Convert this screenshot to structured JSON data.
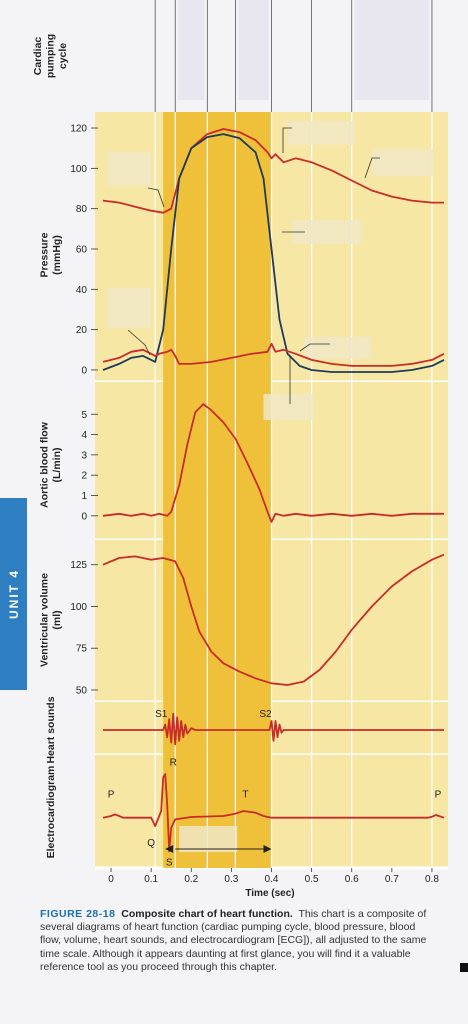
{
  "unit_tab": "UNIT 4",
  "caption": {
    "figure": "FIGURE 28-18",
    "title": "Composite chart of heart function.",
    "body": "This chart is a composite of several diagrams of heart function (cardiac pumping cycle, blood pressure, blood flow, volume, heart sounds, and electrocardiogram [ECG]), all adjusted to the same time scale. Although it appears daunting at first glance, you will find it a valuable reference tool as you proceed through this chapter."
  },
  "colors": {
    "panel_bg": "#f7e7a4",
    "systole_band": "#efc13a",
    "aortic_red": "#c92b2b",
    "ventricle_navy": "#1f3a5a",
    "unit_tab": "#2e7fc2"
  },
  "chart_data": {
    "type": "line",
    "xlabel": "Time (sec)",
    "x_ticks": [
      "0",
      "0.1",
      "0.2",
      "0.3",
      "0.4",
      "0.5",
      "0.6",
      "0.7",
      "0.8"
    ],
    "xlim": [
      -0.04,
      0.84
    ],
    "systole_band": [
      0.13,
      0.4
    ],
    "panels": [
      {
        "id": "cycle",
        "ylabel": "Cardiac pumping cycle",
        "phase_lines": [
          0.11,
          0.16,
          0.24,
          0.31,
          0.4,
          0.5,
          0.6,
          0.8
        ]
      },
      {
        "id": "pressure",
        "ylabel": "Pressure (mmHg)",
        "ylim": [
          -2,
          122
        ],
        "y_ticks": [
          0,
          20,
          40,
          60,
          80,
          100,
          120
        ],
        "series": [
          {
            "role": "aortic",
            "color": "#c92b2b",
            "points": [
              [
                -0.02,
                84
              ],
              [
                0.02,
                83
              ],
              [
                0.06,
                81
              ],
              [
                0.1,
                79
              ],
              [
                0.13,
                78
              ],
              [
                0.15,
                80
              ],
              [
                0.17,
                95
              ],
              [
                0.2,
                110
              ],
              [
                0.24,
                117
              ],
              [
                0.28,
                119.5
              ],
              [
                0.32,
                118
              ],
              [
                0.36,
                114
              ],
              [
                0.39,
                108
              ],
              [
                0.4,
                105
              ],
              [
                0.41,
                107
              ],
              [
                0.43,
                103
              ],
              [
                0.46,
                105
              ],
              [
                0.5,
                103
              ],
              [
                0.55,
                99
              ],
              [
                0.6,
                94
              ],
              [
                0.65,
                89
              ],
              [
                0.7,
                86
              ],
              [
                0.75,
                84
              ],
              [
                0.8,
                83
              ],
              [
                0.83,
                83
              ]
            ]
          },
          {
            "role": "ventricular",
            "color": "#1f3a5a",
            "points": [
              [
                -0.02,
                0
              ],
              [
                0.02,
                3
              ],
              [
                0.05,
                6
              ],
              [
                0.08,
                7
              ],
              [
                0.1,
                5
              ],
              [
                0.11,
                4
              ],
              [
                0.13,
                20
              ],
              [
                0.15,
                60
              ],
              [
                0.17,
                95
              ],
              [
                0.2,
                110
              ],
              [
                0.24,
                115.5
              ],
              [
                0.28,
                117
              ],
              [
                0.32,
                115
              ],
              [
                0.36,
                108
              ],
              [
                0.38,
                95
              ],
              [
                0.4,
                60
              ],
              [
                0.42,
                25
              ],
              [
                0.44,
                8
              ],
              [
                0.47,
                2
              ],
              [
                0.5,
                0
              ],
              [
                0.55,
                -1
              ],
              [
                0.6,
                -1
              ],
              [
                0.65,
                -1
              ],
              [
                0.7,
                -1
              ],
              [
                0.75,
                0
              ],
              [
                0.8,
                2
              ],
              [
                0.83,
                5
              ]
            ]
          },
          {
            "role": "atrial",
            "color": "#c92b2b",
            "points": [
              [
                -0.02,
                4
              ],
              [
                0.02,
                6
              ],
              [
                0.05,
                9
              ],
              [
                0.08,
                10
              ],
              [
                0.1,
                8
              ],
              [
                0.11,
                7
              ],
              [
                0.12,
                8
              ],
              [
                0.14,
                9
              ],
              [
                0.15,
                10
              ],
              [
                0.16,
                7
              ],
              [
                0.17,
                3
              ],
              [
                0.2,
                3
              ],
              [
                0.25,
                4
              ],
              [
                0.3,
                6
              ],
              [
                0.35,
                8
              ],
              [
                0.39,
                9
              ],
              [
                0.4,
                13
              ],
              [
                0.41,
                9
              ],
              [
                0.43,
                10
              ],
              [
                0.46,
                8
              ],
              [
                0.5,
                5
              ],
              [
                0.55,
                3
              ],
              [
                0.6,
                2
              ],
              [
                0.65,
                2
              ],
              [
                0.7,
                2
              ],
              [
                0.75,
                3
              ],
              [
                0.8,
                5
              ],
              [
                0.83,
                8
              ]
            ]
          }
        ]
      },
      {
        "id": "aortic_flow",
        "ylabel": "Aortic blood flow (L/min)",
        "ylim": [
          -0.6,
          5.8
        ],
        "y_ticks": [
          0,
          1,
          2,
          3,
          4,
          5
        ],
        "series": [
          {
            "role": "flow",
            "color": "#c92b2b",
            "points": [
              [
                -0.02,
                0
              ],
              [
                0.02,
                0.1
              ],
              [
                0.05,
                0
              ],
              [
                0.08,
                0.1
              ],
              [
                0.1,
                0
              ],
              [
                0.12,
                0.1
              ],
              [
                0.14,
                0
              ],
              [
                0.15,
                0.2
              ],
              [
                0.17,
                1.5
              ],
              [
                0.19,
                3.5
              ],
              [
                0.21,
                5.1
              ],
              [
                0.23,
                5.5
              ],
              [
                0.25,
                5.2
              ],
              [
                0.28,
                4.6
              ],
              [
                0.31,
                3.8
              ],
              [
                0.34,
                2.6
              ],
              [
                0.37,
                1.3
              ],
              [
                0.39,
                0.2
              ],
              [
                0.4,
                -0.3
              ],
              [
                0.41,
                0.1
              ],
              [
                0.43,
                0
              ],
              [
                0.46,
                0.1
              ],
              [
                0.5,
                0
              ],
              [
                0.55,
                0.1
              ],
              [
                0.6,
                0
              ],
              [
                0.65,
                0.1
              ],
              [
                0.7,
                0
              ],
              [
                0.75,
                0.1
              ],
              [
                0.8,
                0.1
              ],
              [
                0.83,
                0.1
              ]
            ]
          }
        ]
      },
      {
        "id": "volume",
        "ylabel": "Ventricular volume (ml)",
        "ylim": [
          44,
          135
        ],
        "y_ticks": [
          50,
          75,
          100,
          125
        ],
        "series": [
          {
            "role": "volume",
            "color": "#c92b2b",
            "points": [
              [
                -0.02,
                125
              ],
              [
                0.02,
                129
              ],
              [
                0.06,
                130
              ],
              [
                0.1,
                128
              ],
              [
                0.13,
                129
              ],
              [
                0.16,
                127
              ],
              [
                0.18,
                117
              ],
              [
                0.2,
                100
              ],
              [
                0.22,
                85
              ],
              [
                0.25,
                73
              ],
              [
                0.28,
                66
              ],
              [
                0.32,
                61
              ],
              [
                0.36,
                57
              ],
              [
                0.4,
                54
              ],
              [
                0.44,
                53
              ],
              [
                0.48,
                55
              ],
              [
                0.52,
                62
              ],
              [
                0.56,
                73
              ],
              [
                0.6,
                86
              ],
              [
                0.65,
                100
              ],
              [
                0.7,
                112
              ],
              [
                0.75,
                121
              ],
              [
                0.8,
                128
              ],
              [
                0.83,
                131
              ]
            ]
          }
        ]
      },
      {
        "id": "heart_sounds",
        "ylabel": "Heart sounds",
        "ylim": [
          -1,
          1
        ],
        "labels": [
          {
            "text": "S1",
            "x": 0.125
          },
          {
            "text": "S2",
            "x": 0.385
          }
        ],
        "series": [
          {
            "role": "sound",
            "color": "#c92b2b",
            "points": [
              [
                -0.02,
                0
              ],
              [
                0.13,
                0
              ],
              [
                0.135,
                0.3
              ],
              [
                0.14,
                -0.4
              ],
              [
                0.145,
                0.6
              ],
              [
                0.15,
                -0.7
              ],
              [
                0.155,
                0.9
              ],
              [
                0.16,
                -0.8
              ],
              [
                0.165,
                0.7
              ],
              [
                0.17,
                -0.6
              ],
              [
                0.175,
                0.5
              ],
              [
                0.18,
                -0.4
              ],
              [
                0.185,
                0.3
              ],
              [
                0.19,
                -0.2
              ],
              [
                0.2,
                0.1
              ],
              [
                0.21,
                0
              ],
              [
                0.395,
                0
              ],
              [
                0.4,
                0.5
              ],
              [
                0.405,
                -0.6
              ],
              [
                0.41,
                0.5
              ],
              [
                0.415,
                -0.4
              ],
              [
                0.42,
                0.3
              ],
              [
                0.425,
                -0.15
              ],
              [
                0.43,
                0
              ],
              [
                0.83,
                0
              ]
            ]
          }
        ]
      },
      {
        "id": "ecg",
        "ylabel": "Electrocardiogram",
        "ylim": [
          -1.2,
          1.6
        ],
        "labels": [
          {
            "text": "P",
            "x": 0.0
          },
          {
            "text": "R",
            "x": 0.14
          },
          {
            "text": "Q",
            "x": 0.1
          },
          {
            "text": "S",
            "x": 0.145
          },
          {
            "text": "T",
            "x": 0.335
          },
          {
            "text": "P",
            "x": 0.815
          }
        ],
        "series": [
          {
            "role": "ecg",
            "color": "#c92b2b",
            "points": [
              [
                -0.02,
                0
              ],
              [
                0.0,
                0.05
              ],
              [
                0.01,
                0.1
              ],
              [
                0.02,
                0.05
              ],
              [
                0.03,
                0
              ],
              [
                0.1,
                0
              ],
              [
                0.11,
                -0.25
              ],
              [
                0.125,
                0.2
              ],
              [
                0.13,
                1.2
              ],
              [
                0.135,
                1.3
              ],
              [
                0.14,
                0.4
              ],
              [
                0.145,
                -1.0
              ],
              [
                0.15,
                -0.3
              ],
              [
                0.16,
                -0.05
              ],
              [
                0.2,
                0.02
              ],
              [
                0.28,
                0.05
              ],
              [
                0.31,
                0.12
              ],
              [
                0.33,
                0.2
              ],
              [
                0.36,
                0.15
              ],
              [
                0.38,
                0.05
              ],
              [
                0.4,
                0
              ],
              [
                0.6,
                0
              ],
              [
                0.79,
                0
              ],
              [
                0.8,
                0.03
              ],
              [
                0.81,
                0.08
              ],
              [
                0.82,
                0.04
              ],
              [
                0.83,
                0
              ]
            ]
          }
        ]
      }
    ]
  }
}
